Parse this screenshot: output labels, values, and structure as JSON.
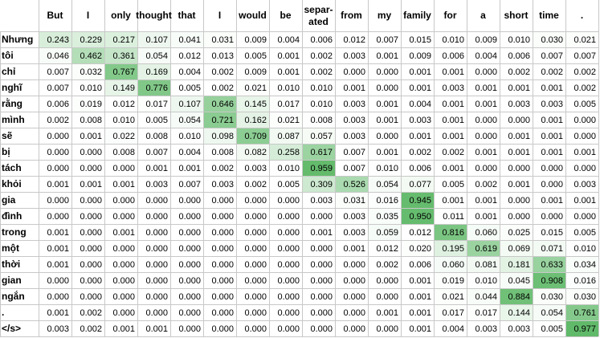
{
  "chart_data": {
    "type": "heatmap",
    "x_labels": [
      "But",
      "I",
      "only",
      "thought",
      "that",
      "I",
      "would",
      "be",
      "separ-ated",
      "from",
      "my",
      "family",
      "for",
      "a",
      "short",
      "time",
      "."
    ],
    "y_labels": [
      "Nhưng",
      "tôi",
      "chỉ",
      "nghĩ",
      "rằng",
      "mình",
      "sẽ",
      "bị",
      "tách",
      "khỏi",
      "gia",
      "đình",
      "trong",
      "một",
      "thời",
      "gian",
      "ngắn",
      ".",
      "</s>"
    ],
    "values": [
      [
        0.243,
        0.229,
        0.217,
        0.107,
        0.041,
        0.031,
        0.009,
        0.004,
        0.006,
        0.012,
        0.007,
        0.015,
        0.01,
        0.009,
        0.01,
        0.03,
        0.021
      ],
      [
        0.046,
        0.462,
        0.361,
        0.054,
        0.012,
        0.013,
        0.005,
        0.001,
        0.002,
        0.003,
        0.001,
        0.009,
        0.006,
        0.004,
        0.006,
        0.007,
        0.007
      ],
      [
        0.007,
        0.032,
        0.767,
        0.169,
        0.004,
        0.002,
        0.009,
        0.001,
        0.002,
        0.0,
        0.0,
        0.001,
        0.001,
        0.0,
        0.002,
        0.002,
        0.002
      ],
      [
        0.007,
        0.01,
        0.149,
        0.776,
        0.005,
        0.002,
        0.021,
        0.01,
        0.01,
        0.001,
        0.0,
        0.001,
        0.003,
        0.001,
        0.001,
        0.001,
        0.002
      ],
      [
        0.006,
        0.019,
        0.012,
        0.017,
        0.107,
        0.646,
        0.145,
        0.017,
        0.01,
        0.003,
        0.001,
        0.004,
        0.001,
        0.001,
        0.003,
        0.003,
        0.005
      ],
      [
        0.002,
        0.008,
        0.01,
        0.005,
        0.054,
        0.721,
        0.162,
        0.021,
        0.008,
        0.003,
        0.001,
        0.003,
        0.001,
        0.0,
        0.0,
        0.001,
        0.0
      ],
      [
        0.0,
        0.001,
        0.022,
        0.008,
        0.01,
        0.098,
        0.709,
        0.087,
        0.057,
        0.003,
        0.0,
        0.001,
        0.001,
        0.0,
        0.001,
        0.001,
        0.0
      ],
      [
        0.0,
        0.0,
        0.008,
        0.007,
        0.004,
        0.008,
        0.082,
        0.258,
        0.617,
        0.007,
        0.001,
        0.002,
        0.002,
        0.001,
        0.001,
        0.001,
        0.001
      ],
      [
        0.0,
        0.0,
        0.0,
        0.001,
        0.001,
        0.002,
        0.003,
        0.01,
        0.959,
        0.007,
        0.01,
        0.006,
        0.001,
        0.0,
        0.0,
        0.0,
        0.0
      ],
      [
        0.001,
        0.001,
        0.001,
        0.003,
        0.007,
        0.003,
        0.002,
        0.005,
        0.309,
        0.526,
        0.054,
        0.077,
        0.005,
        0.002,
        0.001,
        0.0,
        0.003
      ],
      [
        0.0,
        0.0,
        0.0,
        0.0,
        0.0,
        0.0,
        0.0,
        0.0,
        0.003,
        0.031,
        0.016,
        0.945,
        0.001,
        0.001,
        0.0,
        0.001,
        0.001
      ],
      [
        0.0,
        0.0,
        0.0,
        0.0,
        0.0,
        0.0,
        0.0,
        0.0,
        0.0,
        0.003,
        0.035,
        0.95,
        0.011,
        0.001,
        0.0,
        0.0,
        0.0
      ],
      [
        0.001,
        0.0,
        0.001,
        0.0,
        0.0,
        0.0,
        0.0,
        0.0,
        0.001,
        0.003,
        0.059,
        0.012,
        0.816,
        0.06,
        0.025,
        0.015,
        0.005
      ],
      [
        0.001,
        0.0,
        0.0,
        0.0,
        0.0,
        0.0,
        0.0,
        0.0,
        0.0,
        0.001,
        0.012,
        0.02,
        0.195,
        0.619,
        0.069,
        0.071,
        0.01
      ],
      [
        0.001,
        0.0,
        0.0,
        0.0,
        0.0,
        0.0,
        0.0,
        0.0,
        0.0,
        0.0,
        0.002,
        0.006,
        0.06,
        0.081,
        0.181,
        0.633,
        0.034
      ],
      [
        0.0,
        0.0,
        0.0,
        0.0,
        0.0,
        0.0,
        0.0,
        0.0,
        0.0,
        0.0,
        0.0,
        0.001,
        0.019,
        0.01,
        0.045,
        0.908,
        0.016
      ],
      [
        0.0,
        0.0,
        0.0,
        0.0,
        0.0,
        0.0,
        0.0,
        0.0,
        0.0,
        0.0,
        0.0,
        0.001,
        0.021,
        0.044,
        0.884,
        0.03,
        0.03
      ],
      [
        0.001,
        0.002,
        0.0,
        0.0,
        0.0,
        0.0,
        0.0,
        0.0,
        0.0,
        0.0,
        0.001,
        0.001,
        0.017,
        0.017,
        0.144,
        0.054,
        0.761
      ],
      [
        0.003,
        0.002,
        0.001,
        0.001,
        0.0,
        0.0,
        0.0,
        0.0,
        0.0,
        0.0,
        0.0,
        0.001,
        0.004,
        0.003,
        0.003,
        0.005,
        0.977
      ]
    ],
    "value_format": "3 decimals",
    "color_scale": {
      "low": "#ffffff",
      "high": "#5db866"
    },
    "grid": true,
    "legend": "none",
    "title": "",
    "xlabel": "",
    "ylabel": ""
  }
}
